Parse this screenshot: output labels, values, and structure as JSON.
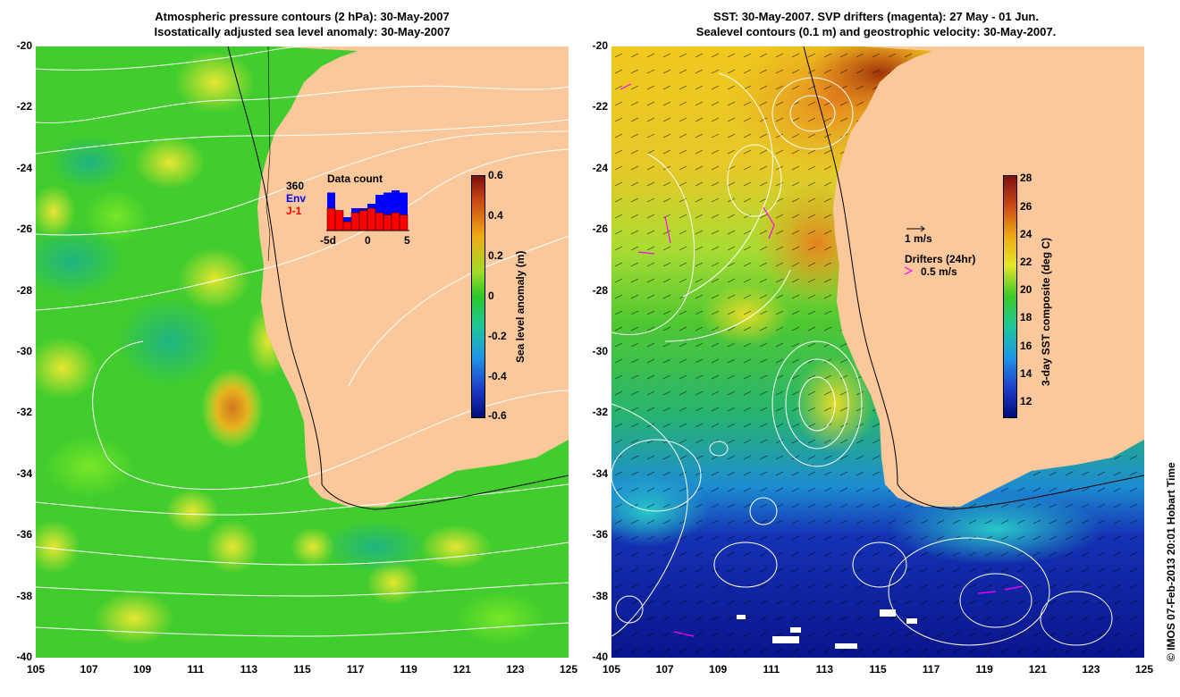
{
  "left_panel": {
    "title_line1": "Atmospheric pressure contours (2 hPa): 30-May-2007",
    "title_line2": "Isostatically adjusted sea level anomaly: 30-May-2007",
    "colorbar": {
      "label": "Sea level anomaly (m)",
      "ticks": [
        "0.6",
        "0.4",
        "0.2",
        "0",
        "-0.2",
        "-0.4",
        "-0.6"
      ]
    },
    "data_count": {
      "title": "Data count",
      "count": "360",
      "env_label": "Env",
      "j1_label": "J-1",
      "axis_labels": [
        "-5d",
        "0",
        "5"
      ],
      "env_values": [
        0.85,
        0.45,
        0.3,
        0.5,
        0.5,
        0.6,
        0.8,
        0.85,
        0.9,
        0.85
      ],
      "j1_values": [
        0.5,
        0.45,
        0.2,
        0.4,
        0.45,
        0.5,
        0.4,
        0.35,
        0.4,
        0.35
      ],
      "env_color": "#0000ff",
      "j1_color": "#ff0000"
    }
  },
  "right_panel": {
    "title_line1": "SST: 30-May-2007. SVP drifters (magenta): 27 May - 01 Jun.",
    "title_line2": "Sealevel contours (0.1 m) and geostrophic velocity: 30-May-2007.",
    "colorbar": {
      "label": "3-day SST composite (deg C)",
      "ticks": [
        "28",
        "26",
        "24",
        "22",
        "20",
        "18",
        "16",
        "14",
        "12"
      ]
    },
    "scale_arrow_label": "1 m/s",
    "drifters_label": "Drifters (24hr)",
    "drifter_scale_label": "0.5 m/s"
  },
  "axes": {
    "lat_ticks": [
      "-20",
      "-22",
      "-24",
      "-26",
      "-28",
      "-30",
      "-32",
      "-34",
      "-36",
      "-38",
      "-40"
    ],
    "lon_ticks": [
      "105",
      "107",
      "109",
      "111",
      "113",
      "115",
      "117",
      "119",
      "121",
      "123",
      "125"
    ]
  },
  "credit": "© IMOS 07-Feb-2013 20:01 Hobart Time",
  "colors": {
    "land": "#fac89b",
    "ocean_base": "#3ccd28",
    "contour": "#ffffff",
    "drifter": "#ff00ff"
  }
}
